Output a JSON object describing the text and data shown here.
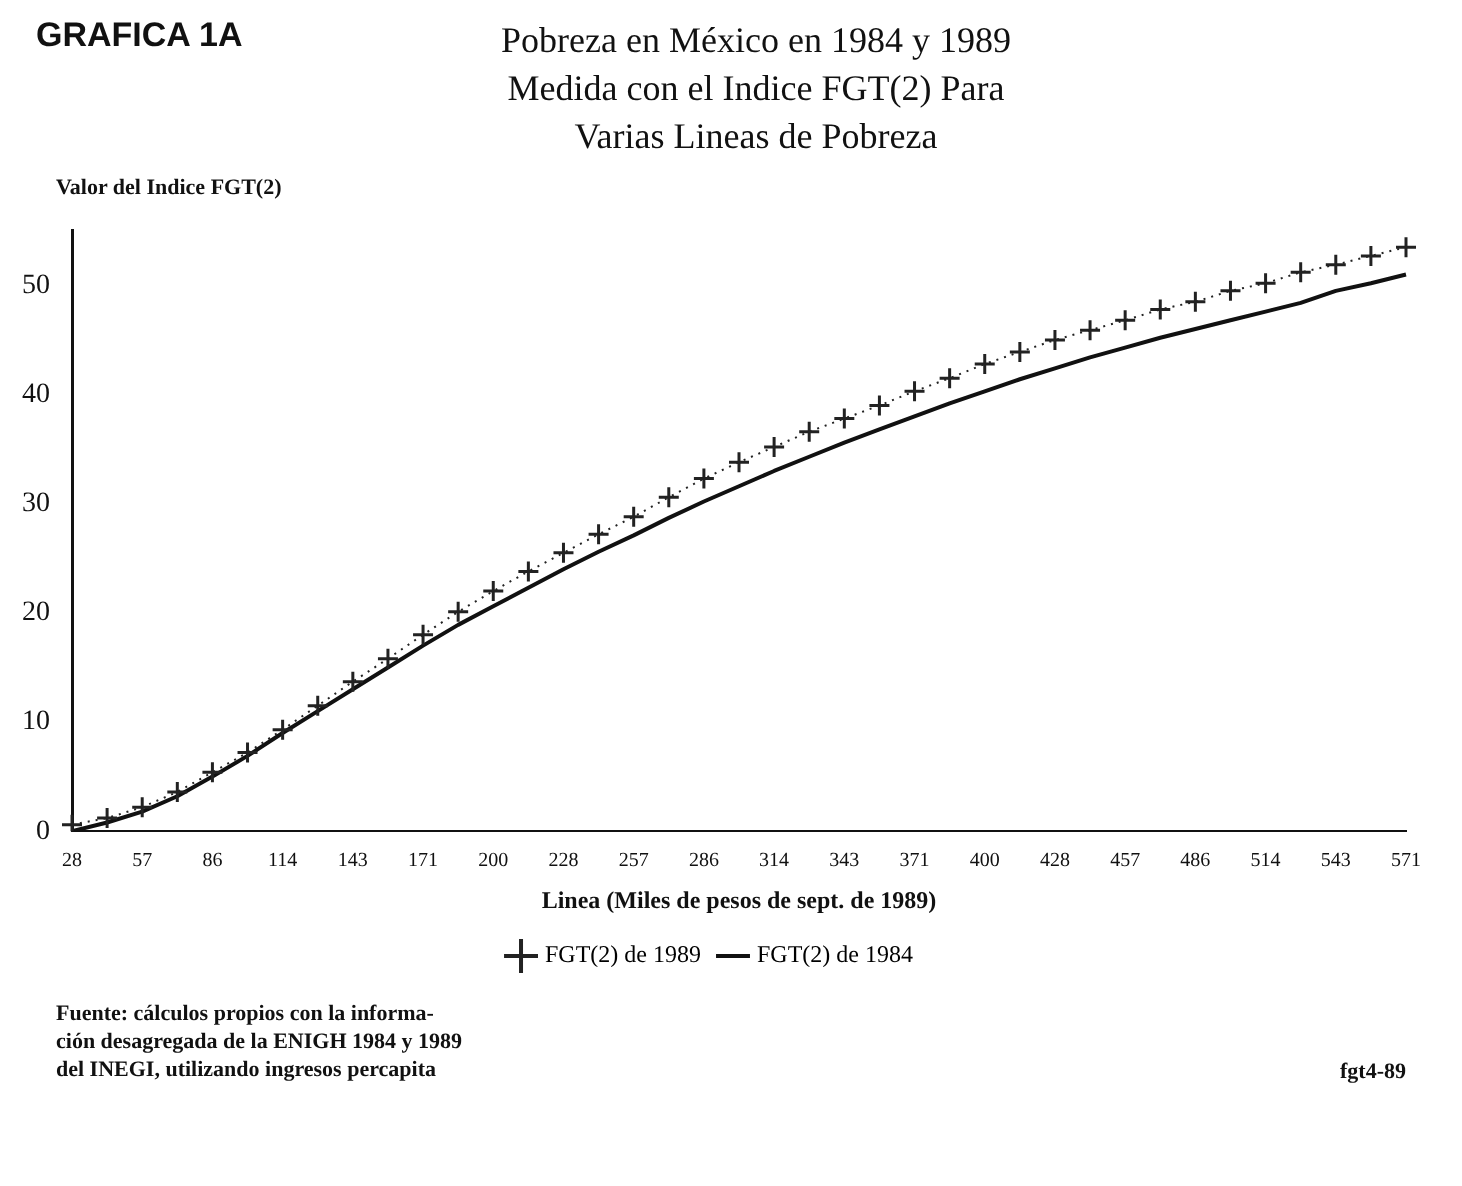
{
  "chart_data": {
    "type": "line",
    "title": "GRAFICA 1A",
    "subtitle": "Pobreza en México en 1984 y 1989\nMedida con el Indice FGT(2) Para\nVarias Lineas de Pobreza",
    "ylabel": "Valor del Indice FGT(2)",
    "xlabel": "Linea (Miles de pesos de sept. de 1989)",
    "categories": [
      "28",
      null,
      "57",
      null,
      "86",
      null,
      "114",
      null,
      "143",
      null,
      "171",
      null,
      "200",
      null,
      "228",
      null,
      "257",
      null,
      "286",
      null,
      "314",
      null,
      "343",
      null,
      "371",
      null,
      "400",
      null,
      "428",
      null,
      "457",
      null,
      "486",
      null,
      "514",
      null,
      "543",
      null,
      "571"
    ],
    "series": [
      {
        "name": "FGT(2) de 1989",
        "color": "#222222",
        "marker": "cross",
        "line_style": "dotted",
        "values": [
          0.6,
          1.2,
          2.2,
          3.6,
          5.4,
          7.2,
          9.3,
          11.5,
          13.7,
          15.8,
          18.0,
          20.1,
          22.0,
          23.8,
          25.5,
          27.2,
          28.8,
          30.6,
          32.3,
          33.8,
          35.2,
          36.6,
          37.8,
          39.0,
          40.3,
          41.5,
          42.8,
          43.9,
          45.0,
          45.9,
          46.8,
          47.8,
          48.5,
          49.5,
          50.2,
          51.2,
          51.9,
          52.7,
          53.5
        ]
      },
      {
        "name": "FGT(2) de 1984",
        "color": "#111111",
        "marker": "none",
        "line_style": "solid",
        "values": [
          0.0,
          0.8,
          1.8,
          3.2,
          5.0,
          6.9,
          9.0,
          11.0,
          13.0,
          15.0,
          17.0,
          18.9,
          20.6,
          22.3,
          24.0,
          25.6,
          27.1,
          28.7,
          30.2,
          31.6,
          33.0,
          34.3,
          35.6,
          36.8,
          38.0,
          39.2,
          40.3,
          41.4,
          42.4,
          43.4,
          44.3,
          45.2,
          46.0,
          46.8,
          47.6,
          48.4,
          49.5,
          50.2,
          51.0
        ]
      }
    ],
    "ylim": [
      0,
      55
    ],
    "yticks": [
      0,
      10,
      20,
      30,
      40,
      50
    ],
    "grid": false,
    "legend": "bottom",
    "annotations": [
      "Fuente: cálculos propios con la informa-\nción desagregada de la ENIGH 1984 y 1989\ndel INEGI, utilizando ingresos percapita",
      "fgt4-89"
    ]
  }
}
